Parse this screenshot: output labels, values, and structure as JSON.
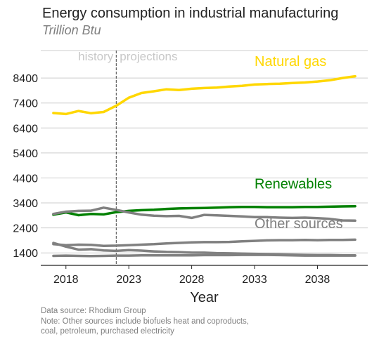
{
  "chart_data": {
    "type": "line",
    "title": "Energy consumption in industrial manufacturing",
    "subtitle": "Trillion Btu",
    "xlabel": "Year",
    "ylabel": "",
    "xlim": [
      2016,
      2042
    ],
    "ylim": [
      900,
      9500
    ],
    "x_ticks": [
      2018,
      2023,
      2028,
      2033,
      2038
    ],
    "y_ticks": [
      1400,
      2400,
      3400,
      4400,
      5400,
      6400,
      7400,
      8400
    ],
    "grid": "horizontal",
    "divider": {
      "x": 2022,
      "left_label": "history",
      "right_label": "projections"
    },
    "x": [
      2017,
      2018,
      2019,
      2020,
      2021,
      2022,
      2023,
      2024,
      2025,
      2026,
      2027,
      2028,
      2029,
      2030,
      2031,
      2032,
      2033,
      2034,
      2035,
      2036,
      2037,
      2038,
      2039,
      2040,
      2041
    ],
    "series": [
      {
        "name": "Natural gas",
        "color": "#FFD700",
        "values": [
          7000,
          6960,
          7080,
          6990,
          7040,
          7290,
          7610,
          7800,
          7870,
          7950,
          7920,
          7970,
          8000,
          8020,
          8060,
          8090,
          8140,
          8160,
          8170,
          8200,
          8220,
          8260,
          8310,
          8400,
          8470
        ]
      },
      {
        "name": "Renewables",
        "color": "#008000",
        "values": [
          2930,
          3020,
          2910,
          2960,
          2940,
          3030,
          3080,
          3110,
          3130,
          3160,
          3180,
          3190,
          3200,
          3210,
          3230,
          3240,
          3240,
          3230,
          3230,
          3230,
          3240,
          3240,
          3250,
          3260,
          3270
        ]
      },
      {
        "name": "Other sources",
        "color": "#808080",
        "lines": [
          [
            2960,
            3050,
            3080,
            3090,
            3210,
            3120,
            3020,
            2930,
            2890,
            2870,
            2880,
            2800,
            2920,
            2900,
            2880,
            2860,
            2830,
            2830,
            2810,
            2800,
            2810,
            2790,
            2760,
            2700,
            2690
          ],
          [
            1800,
            1650,
            1530,
            1550,
            1500,
            1480,
            1510,
            1490,
            1460,
            1440,
            1430,
            1410,
            1410,
            1390,
            1380,
            1370,
            1360,
            1350,
            1340,
            1330,
            1320,
            1310,
            1310,
            1300,
            1300
          ],
          [
            1750,
            1710,
            1730,
            1720,
            1680,
            1690,
            1710,
            1730,
            1750,
            1780,
            1800,
            1820,
            1830,
            1830,
            1840,
            1860,
            1880,
            1900,
            1910,
            1910,
            1920,
            1910,
            1920,
            1920,
            1930
          ],
          [
            1280,
            1290,
            1280,
            1270,
            1280,
            1290,
            1290,
            1300,
            1300,
            1300,
            1300,
            1300,
            1310,
            1310,
            1310,
            1320,
            1320,
            1320,
            1310,
            1300,
            1290,
            1290,
            1290,
            1290,
            1290
          ]
        ]
      }
    ],
    "series_labels": [
      {
        "name": "Natural gas",
        "color": "#FFD700",
        "anchor_x": 2033,
        "anchor_y": 8880
      },
      {
        "name": "Renewables",
        "color": "#008000",
        "anchor_x": 2033,
        "anchor_y": 3980
      },
      {
        "name": "Other sources",
        "color": "#808080",
        "anchor_x": 2033,
        "anchor_y": 2390
      }
    ]
  },
  "footer": {
    "source": "Data source: Rhodium Group",
    "note_line1": "Note: Other sources include biofuels heat and coproducts,",
    "note_line2": "coal, petroleum, purchased electricity"
  }
}
